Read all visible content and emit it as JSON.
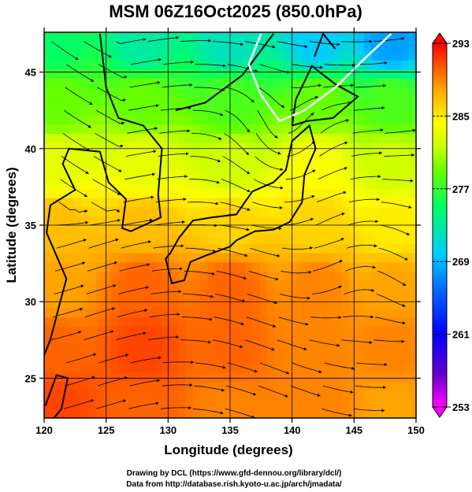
{
  "chart_data": {
    "type": "heatmap",
    "title": "MSM 06Z16Oct2025 (850.0hPa)",
    "xlabel": "Longitude (degrees)",
    "ylabel": "Latitude  (degrees)",
    "xlim": [
      120,
      150
    ],
    "ylim": [
      22.4,
      47.6
    ],
    "xticks": [
      120,
      125,
      130,
      135,
      140,
      145,
      150
    ],
    "yticks": [
      25,
      30,
      35,
      40,
      45
    ],
    "grid": true,
    "colorbar": {
      "min": 253,
      "max": 293,
      "ticks": [
        293,
        285,
        277,
        269,
        261,
        253
      ],
      "placement": "right",
      "colors": [
        "#ff00ff",
        "#6600cc",
        "#0000ff",
        "#0066ff",
        "#00ccff",
        "#00ff66",
        "#66ff00",
        "#ccff00",
        "#ffff00",
        "#ffaa00",
        "#ff4400",
        "#ff0000"
      ]
    },
    "field_samples": [
      {
        "lon": 121,
        "lat": 47,
        "value": 275
      },
      {
        "lon": 128,
        "lat": 47,
        "value": 273
      },
      {
        "lon": 135,
        "lat": 47,
        "value": 272
      },
      {
        "lon": 142,
        "lat": 47,
        "value": 270
      },
      {
        "lon": 148,
        "lat": 47,
        "value": 268
      },
      {
        "lon": 121,
        "lat": 43,
        "value": 279
      },
      {
        "lon": 128,
        "lat": 43,
        "value": 279
      },
      {
        "lon": 135,
        "lat": 43,
        "value": 278
      },
      {
        "lon": 142,
        "lat": 43,
        "value": 279
      },
      {
        "lon": 148,
        "lat": 43,
        "value": 278
      },
      {
        "lon": 121,
        "lat": 39,
        "value": 283
      },
      {
        "lon": 128,
        "lat": 39,
        "value": 283
      },
      {
        "lon": 135,
        "lat": 39,
        "value": 282
      },
      {
        "lon": 142,
        "lat": 39,
        "value": 284
      },
      {
        "lon": 148,
        "lat": 39,
        "value": 282
      },
      {
        "lon": 121,
        "lat": 35,
        "value": 287
      },
      {
        "lon": 128,
        "lat": 35,
        "value": 287
      },
      {
        "lon": 135,
        "lat": 35,
        "value": 286
      },
      {
        "lon": 142,
        "lat": 35,
        "value": 286
      },
      {
        "lon": 148,
        "lat": 35,
        "value": 285
      },
      {
        "lon": 121,
        "lat": 31,
        "value": 288
      },
      {
        "lon": 128,
        "lat": 31,
        "value": 290
      },
      {
        "lon": 135,
        "lat": 31,
        "value": 290
      },
      {
        "lon": 142,
        "lat": 31,
        "value": 289
      },
      {
        "lon": 148,
        "lat": 31,
        "value": 288
      },
      {
        "lon": 121,
        "lat": 27,
        "value": 290
      },
      {
        "lon": 128,
        "lat": 27,
        "value": 291
      },
      {
        "lon": 135,
        "lat": 27,
        "value": 290
      },
      {
        "lon": 142,
        "lat": 27,
        "value": 289
      },
      {
        "lon": 148,
        "lat": 27,
        "value": 289
      },
      {
        "lon": 121,
        "lat": 23,
        "value": 291
      },
      {
        "lon": 128,
        "lat": 23,
        "value": 290
      },
      {
        "lon": 135,
        "lat": 23,
        "value": 289
      },
      {
        "lon": 142,
        "lat": 23,
        "value": 289
      },
      {
        "lon": 148,
        "lat": 23,
        "value": 288
      }
    ],
    "overlay": "wind streamlines, coastlines, white contour line"
  },
  "credits": {
    "line1": "Drawing by DCL (https://www.gfd-dennou.org/library/dcl/)",
    "line2": "Data from http://database.rish.kyoto-u.ac.jp/arch/jmadata/"
  }
}
